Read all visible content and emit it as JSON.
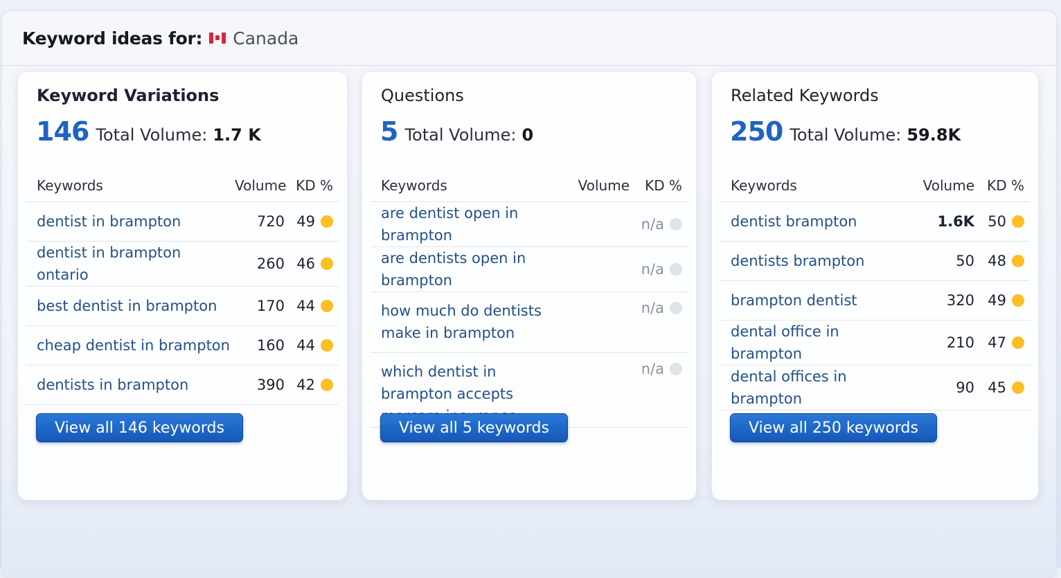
{
  "header": {
    "label": "Keyword ideas for:",
    "country": "Canada",
    "flag_icon": "canada-flag-icon"
  },
  "colors": {
    "accent": "#1f63c4",
    "kd_medium": "#fbbf24",
    "kd_na": "#dfe3ea",
    "keyword_link": "#23508a"
  },
  "cards": [
    {
      "title": "Keyword Variations",
      "count": "146",
      "total_label": "Total Volume:",
      "total": "1.7 K",
      "columns": {
        "keywords": "Keywords",
        "volume": "Volume",
        "kd": "KD %"
      },
      "rows": [
        {
          "keyword": "dentist in brampton",
          "volume": "720",
          "kd": "49",
          "kd_level": "medium"
        },
        {
          "keyword": "dentist in brampton ontario",
          "volume": "260",
          "kd": "46",
          "kd_level": "medium"
        },
        {
          "keyword": "best dentist in brampton",
          "volume": "170",
          "kd": "44",
          "kd_level": "medium"
        },
        {
          "keyword": "cheap dentist in brampton",
          "volume": "160",
          "kd": "44",
          "kd_level": "medium"
        },
        {
          "keyword": "dentists in brampton",
          "volume": "390",
          "kd": "42",
          "kd_level": "medium"
        }
      ],
      "button": "View all 146 keywords"
    },
    {
      "title": "Questions",
      "count": "5",
      "total_label": "Total Volume:",
      "total": "0",
      "columns": {
        "keywords": "Keywords",
        "volume": "Volume",
        "kd": "KD %"
      },
      "rows": [
        {
          "keyword": "are dentist open in brampton",
          "volume": "",
          "kd": "n/a",
          "kd_level": "na"
        },
        {
          "keyword": "are dentists open in brampton",
          "volume": "",
          "kd": "n/a",
          "kd_level": "na"
        },
        {
          "keyword": "how much do dentists make in brampton",
          "volume": "",
          "kd": "n/a",
          "kd_level": "na"
        },
        {
          "keyword": "which dentist in brampton accepts morcare insurance",
          "volume": "",
          "kd": "n/a",
          "kd_level": "na"
        }
      ],
      "button": "View all 5 keywords"
    },
    {
      "title": "Related Keywords",
      "count": "250",
      "total_label": "Total Volume:",
      "total": "59.8K",
      "columns": {
        "keywords": "Keywords",
        "volume": "Volume",
        "kd": "KD %"
      },
      "rows": [
        {
          "keyword": "dentist brampton",
          "volume": "1.6K",
          "kd": "50",
          "kd_level": "medium",
          "bold_volume": true
        },
        {
          "keyword": "dentists brampton",
          "volume": "50",
          "kd": "48",
          "kd_level": "medium"
        },
        {
          "keyword": "brampton dentist",
          "volume": "320",
          "kd": "49",
          "kd_level": "medium"
        },
        {
          "keyword": "dental office in brampton",
          "volume": "210",
          "kd": "47",
          "kd_level": "medium"
        },
        {
          "keyword": "dental offices in brampton",
          "volume": "90",
          "kd": "45",
          "kd_level": "medium"
        }
      ],
      "button": "View all 250 keywords"
    }
  ]
}
